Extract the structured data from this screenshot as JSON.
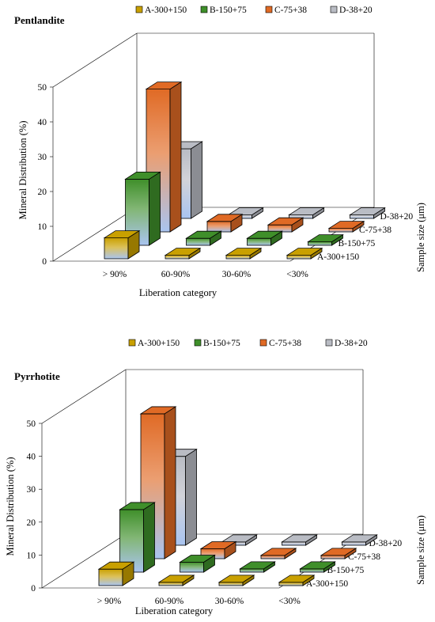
{
  "colors": {
    "A": "#c9a000",
    "B": "#3f8f2a",
    "C": "#e06a25",
    "D": "#b9bcc4",
    "light": "#a9c4f0"
  },
  "chart_data": [
    {
      "type": "bar",
      "subtype": "3d-bar",
      "title": "Pentlandite",
      "categories": [
        "> 90%",
        "60-90%",
        "30-60%",
        "<30%"
      ],
      "depth_categories": [
        "A-300+150",
        "B-150+75",
        "C-75+38",
        "D-38+20"
      ],
      "legend": [
        "A-300+150",
        "B-150+75",
        "C-75+38",
        "D-38+20"
      ],
      "legend_position": "top",
      "series": [
        {
          "name": "A-300+150",
          "values": [
            6,
            1,
            1,
            1
          ]
        },
        {
          "name": "B-150+75",
          "values": [
            19,
            2,
            2,
            1
          ]
        },
        {
          "name": "C-75+38",
          "values": [
            41,
            3,
            2,
            1
          ]
        },
        {
          "name": "D-38+20",
          "values": [
            20,
            1,
            1,
            1
          ]
        }
      ],
      "ylabel": "Mineral Distribution (%)",
      "xlabel": "Liberation category",
      "zlabel": "Sample size (μm)",
      "yticks": [
        0,
        10,
        20,
        30,
        40,
        50
      ],
      "ylim": [
        0,
        50
      ],
      "grid": false
    },
    {
      "type": "bar",
      "subtype": "3d-bar",
      "title": "Pyrrhotite",
      "categories": [
        "> 90%",
        "60-90%",
        "30-60%",
        "<30%"
      ],
      "depth_categories": [
        "A-300+150",
        "B-150+75",
        "C-75+38",
        "D-38+20"
      ],
      "legend": [
        "A-300+150",
        "B-150+75",
        "C-75+38",
        "D-38+20"
      ],
      "legend_position": "top",
      "series": [
        {
          "name": "A-300+150",
          "values": [
            5,
            1,
            1,
            1
          ]
        },
        {
          "name": "B-150+75",
          "values": [
            19,
            3,
            1,
            1
          ]
        },
        {
          "name": "C-75+38",
          "values": [
            44,
            3,
            1,
            1
          ]
        },
        {
          "name": "D-38+20",
          "values": [
            27,
            1,
            1,
            1
          ]
        }
      ],
      "ylabel": "Mineral Distribution (%)",
      "xlabel": "Liberation category",
      "zlabel": "Sample size (μm)",
      "yticks": [
        0,
        10,
        20,
        30,
        40,
        50
      ],
      "ylim": [
        0,
        50
      ],
      "grid": false
    }
  ]
}
